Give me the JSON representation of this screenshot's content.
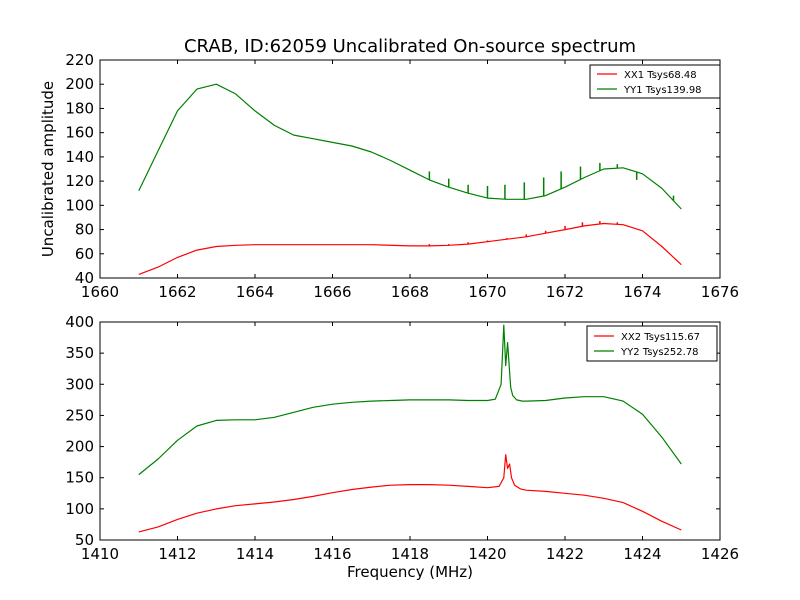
{
  "figure": {
    "title": "CRAB, ID:62059 Uncalibrated On-source spectrum",
    "xlabel": "Frequency (MHz)",
    "ylabel_top": "Uncalibrated amplitude"
  },
  "colors": {
    "red": "#ff0000",
    "green": "#008000"
  },
  "chart_data": [
    {
      "type": "line",
      "title": "CRAB, ID:62059 Uncalibrated On-source spectrum",
      "xlabel": "",
      "ylabel": "Uncalibrated amplitude",
      "xlim": [
        1660,
        1676
      ],
      "ylim": [
        40,
        220
      ],
      "xticks": [
        "1660",
        "1662",
        "1664",
        "1666",
        "1668",
        "1670",
        "1672",
        "1674",
        "1676"
      ],
      "yticks": [
        "40",
        "60",
        "80",
        "100",
        "120",
        "140",
        "160",
        "180",
        "200",
        "220"
      ],
      "grid": false,
      "legend": "top-right",
      "series": [
        {
          "name": "XX1 Tsys68.48",
          "color": "#ff0000",
          "x": [
            1661.0,
            1661.5,
            1662.0,
            1662.5,
            1663.0,
            1663.5,
            1664.0,
            1665.0,
            1666.0,
            1667.0,
            1668.0,
            1668.5,
            1669.0,
            1669.5,
            1670.0,
            1670.5,
            1671.0,
            1671.5,
            1672.0,
            1672.5,
            1673.0,
            1673.5,
            1674.0,
            1674.5,
            1675.0
          ],
          "values": [
            43,
            49,
            57,
            63,
            66,
            67,
            67.5,
            67.5,
            67.5,
            67.5,
            66.5,
            66.5,
            67,
            68,
            70,
            72,
            74,
            77,
            80,
            83,
            85,
            84,
            79,
            66,
            51
          ],
          "spikes": [
            {
              "x": 1668.5,
              "top": 68
            },
            {
              "x": 1669.0,
              "top": 68
            },
            {
              "x": 1669.5,
              "top": 69.5
            },
            {
              "x": 1670.0,
              "top": 71
            },
            {
              "x": 1670.5,
              "top": 73
            },
            {
              "x": 1671.0,
              "top": 76
            },
            {
              "x": 1671.5,
              "top": 79
            },
            {
              "x": 1672.0,
              "top": 83
            },
            {
              "x": 1672.45,
              "top": 86
            },
            {
              "x": 1672.9,
              "top": 87
            },
            {
              "x": 1673.35,
              "top": 86
            }
          ]
        },
        {
          "name": "YY1 Tsys139.98",
          "color": "#008000",
          "x": [
            1661.0,
            1661.5,
            1662.0,
            1662.5,
            1663.0,
            1663.5,
            1664.0,
            1664.5,
            1665.0,
            1665.5,
            1666.0,
            1666.5,
            1667.0,
            1667.5,
            1668.0,
            1668.5,
            1669.0,
            1669.5,
            1670.0,
            1670.5,
            1671.0,
            1671.5,
            1672.0,
            1672.5,
            1673.0,
            1673.5,
            1674.0,
            1674.5,
            1675.0
          ],
          "values": [
            112,
            145,
            178,
            196,
            200,
            192,
            178,
            166,
            158,
            155,
            152,
            149,
            144,
            137,
            129,
            121,
            115,
            110,
            106,
            105,
            105,
            108,
            115,
            123,
            130,
            131,
            126,
            114,
            97
          ],
          "spikes": [
            {
              "x": 1668.5,
              "top": 128
            },
            {
              "x": 1669.0,
              "top": 122
            },
            {
              "x": 1669.5,
              "top": 117
            },
            {
              "x": 1670.0,
              "top": 116
            },
            {
              "x": 1670.45,
              "top": 117
            },
            {
              "x": 1670.95,
              "top": 119
            },
            {
              "x": 1671.45,
              "top": 123
            },
            {
              "x": 1671.9,
              "top": 128
            },
            {
              "x": 1672.4,
              "top": 132
            },
            {
              "x": 1672.9,
              "top": 135
            },
            {
              "x": 1673.35,
              "top": 134
            },
            {
              "x": 1673.85,
              "top": 121
            },
            {
              "x": 1674.8,
              "top": 108
            }
          ]
        }
      ]
    },
    {
      "type": "line",
      "title": "",
      "xlabel": "Frequency (MHz)",
      "ylabel": "",
      "xlim": [
        1410,
        1426
      ],
      "ylim": [
        50,
        400
      ],
      "xticks": [
        "1410",
        "1412",
        "1414",
        "1416",
        "1418",
        "1420",
        "1422",
        "1424",
        "1426"
      ],
      "yticks": [
        "50",
        "100",
        "150",
        "200",
        "250",
        "300",
        "350",
        "400"
      ],
      "grid": false,
      "legend": "top-right",
      "series": [
        {
          "name": "XX2 Tsys115.67",
          "color": "#ff0000",
          "x": [
            1411.0,
            1411.5,
            1412.0,
            1412.5,
            1413.0,
            1413.5,
            1414.0,
            1414.5,
            1415.0,
            1415.5,
            1416.0,
            1416.5,
            1417.0,
            1417.5,
            1418.0,
            1418.5,
            1419.0,
            1419.5,
            1420.0,
            1420.3,
            1420.42,
            1420.47,
            1420.52,
            1420.57,
            1420.62,
            1420.7,
            1420.85,
            1421.0,
            1421.5,
            1422.0,
            1422.5,
            1423.0,
            1423.5,
            1424.0,
            1424.5,
            1425.0
          ],
          "values": [
            63,
            71,
            83,
            93,
            100,
            105,
            108,
            111,
            115,
            120,
            126,
            131,
            135,
            138,
            139,
            139,
            138,
            136,
            134,
            136,
            150,
            187,
            165,
            172,
            150,
            138,
            132,
            130,
            128,
            125,
            122,
            117,
            110,
            96,
            80,
            66
          ]
        },
        {
          "name": "YY2 Tsys252.78",
          "color": "#008000",
          "x": [
            1411.0,
            1411.5,
            1412.0,
            1412.5,
            1413.0,
            1413.5,
            1414.0,
            1414.5,
            1415.0,
            1415.5,
            1416.0,
            1416.5,
            1417.0,
            1417.5,
            1418.0,
            1418.5,
            1419.0,
            1419.5,
            1420.0,
            1420.2,
            1420.35,
            1420.42,
            1420.47,
            1420.52,
            1420.57,
            1420.6,
            1420.65,
            1420.75,
            1420.9,
            1421.0,
            1421.5,
            1422.0,
            1422.5,
            1423.0,
            1423.5,
            1424.0,
            1424.5,
            1425.0
          ],
          "values": [
            155,
            180,
            210,
            233,
            242,
            243,
            243,
            247,
            255,
            263,
            268,
            271,
            273,
            274,
            275,
            275,
            275,
            274,
            274,
            276,
            300,
            395,
            330,
            367,
            320,
            295,
            282,
            275,
            273,
            273,
            274,
            278,
            280,
            280,
            273,
            252,
            215,
            172
          ]
        }
      ]
    }
  ]
}
